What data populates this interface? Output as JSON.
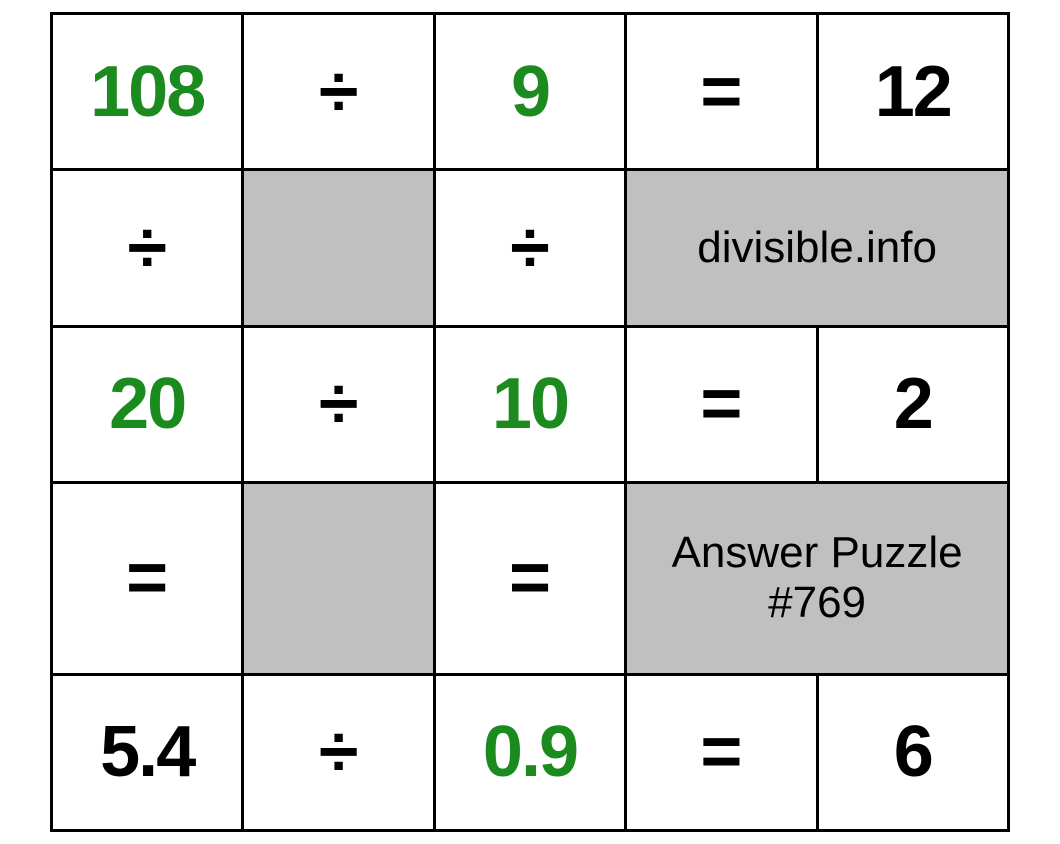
{
  "puzzle": {
    "type": "table",
    "grid_cols": 5,
    "grid_rows": 5,
    "border_color": "#000000",
    "border_width": 3,
    "cell_bg": "#ffffff",
    "gray_bg": "#c0c0c0",
    "green": "#1b8a1f",
    "black": "#000000",
    "number_fontsize": 72,
    "number_fontweight": 700,
    "info_fontsize": 44,
    "info_fontweight": 400,
    "cells": {
      "r0c0": {
        "text": "108",
        "color": "#1b8a1f"
      },
      "r0c1": {
        "text": "÷",
        "color": "#000000"
      },
      "r0c2": {
        "text": "9",
        "color": "#1b8a1f"
      },
      "r0c3": {
        "text": "=",
        "color": "#000000"
      },
      "r0c4": {
        "text": "12",
        "color": "#000000"
      },
      "r1c0": {
        "text": "÷",
        "color": "#000000"
      },
      "r1c1": {
        "text": "",
        "gray": true
      },
      "r1c2": {
        "text": "÷",
        "color": "#000000"
      },
      "r1c3": {
        "text": "divisible.info",
        "gray": true,
        "span": 2,
        "info": true
      },
      "r2c0": {
        "text": "20",
        "color": "#1b8a1f"
      },
      "r2c1": {
        "text": "÷",
        "color": "#000000"
      },
      "r2c2": {
        "text": "10",
        "color": "#1b8a1f"
      },
      "r2c3": {
        "text": "=",
        "color": "#000000"
      },
      "r2c4": {
        "text": "2",
        "color": "#000000"
      },
      "r3c0": {
        "text": "=",
        "color": "#000000"
      },
      "r3c1": {
        "text": "",
        "gray": true
      },
      "r3c2": {
        "text": "=",
        "color": "#000000"
      },
      "r3c3": {
        "text": "Answer Puzzle\n#769",
        "gray": true,
        "span": 2,
        "info": true
      },
      "r4c0": {
        "text": "5.4",
        "color": "#000000"
      },
      "r4c1": {
        "text": "÷",
        "color": "#000000"
      },
      "r4c2": {
        "text": "0.9",
        "color": "#1b8a1f"
      },
      "r4c3": {
        "text": "=",
        "color": "#000000"
      },
      "r4c4": {
        "text": "6",
        "color": "#000000"
      }
    }
  }
}
